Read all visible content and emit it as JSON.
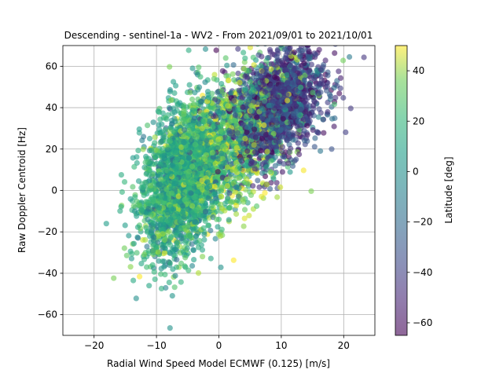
{
  "chart_data": {
    "type": "scatter",
    "title": "Descending - sentinel-1a - WV2 - From 2021/09/01 to 2021/10/01",
    "xlabel": "Radial Wind Speed Model ECMWF (0.125) [m/s]",
    "ylabel": "Raw Doppler Centroid [Hz]",
    "xlim": [
      -25,
      25
    ],
    "ylim": [
      -70,
      70
    ],
    "xticks": [
      -20,
      -10,
      0,
      10,
      20
    ],
    "yticks": [
      -60,
      -40,
      -20,
      0,
      20,
      40,
      60
    ],
    "xtick_labels": [
      "−20",
      "−10",
      "0",
      "10",
      "20"
    ],
    "ytick_labels": [
      "−60",
      "−40",
      "−20",
      "0",
      "20",
      "40",
      "60"
    ],
    "grid": true,
    "colorbar": {
      "label": "Latitude [deg]",
      "range": [
        -65,
        50
      ],
      "ticks": [
        -60,
        -40,
        -20,
        0,
        20,
        40
      ],
      "tick_labels": [
        "−60",
        "−40",
        "−20",
        "0",
        "20",
        "40"
      ],
      "colormap": "viridis",
      "alpha": 0.6
    },
    "clusters": [
      {
        "cx": -6,
        "cy": 5,
        "sx": 3.2,
        "sy": 18,
        "rho": 0.35,
        "lat_mean": 5,
        "lat_sd": 14,
        "n": 2200
      },
      {
        "cx": 9,
        "cy": 40,
        "sx": 4.0,
        "sy": 14,
        "rho": 0.4,
        "lat_mean": -42,
        "lat_sd": 14,
        "n": 1700
      },
      {
        "cx": 2,
        "cy": 22,
        "sx": 5.0,
        "sy": 20,
        "rho": 0.55,
        "lat_mean": 20,
        "lat_sd": 18,
        "n": 1200
      }
    ]
  }
}
